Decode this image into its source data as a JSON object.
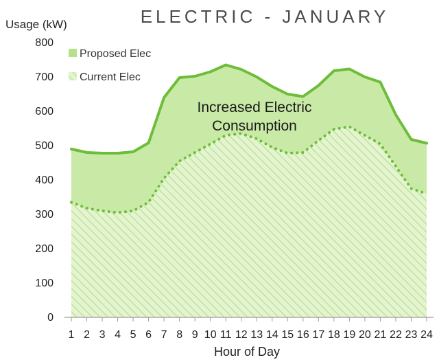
{
  "chart_data": {
    "type": "area",
    "title": "ELECTRIC - JANUARY",
    "ylabel": "Usage (kW)",
    "xlabel": "Hour of Day",
    "ylim": [
      0,
      800
    ],
    "yticks": [
      0,
      100,
      200,
      300,
      400,
      500,
      600,
      700,
      800
    ],
    "x": [
      1,
      2,
      3,
      4,
      5,
      6,
      7,
      8,
      9,
      10,
      11,
      12,
      13,
      14,
      15,
      16,
      17,
      18,
      19,
      20,
      21,
      22,
      23,
      24
    ],
    "series": [
      {
        "name": "Proposed Elec",
        "style": "solid",
        "color": "#6ebd3a",
        "fill": "#c9eaa6",
        "values": [
          490,
          480,
          478,
          478,
          482,
          508,
          640,
          698,
          702,
          715,
          735,
          722,
          700,
          672,
          650,
          643,
          675,
          718,
          723,
          700,
          685,
          590,
          518,
          507
        ]
      },
      {
        "name": "Current Elec",
        "style": "dotted",
        "color": "#6ebd3a",
        "fill": "#e3f3cf",
        "hatch": "#c6e6a3",
        "values": [
          335,
          318,
          310,
          305,
          310,
          335,
          405,
          455,
          480,
          505,
          530,
          535,
          520,
          495,
          478,
          480,
          515,
          548,
          555,
          530,
          505,
          440,
          375,
          360
        ]
      }
    ],
    "legend": [
      "Proposed Elec",
      "Current Elec"
    ],
    "legend_position": "top-left",
    "annotation": [
      "Increased Electric",
      "Consumption"
    ],
    "grid": false
  }
}
